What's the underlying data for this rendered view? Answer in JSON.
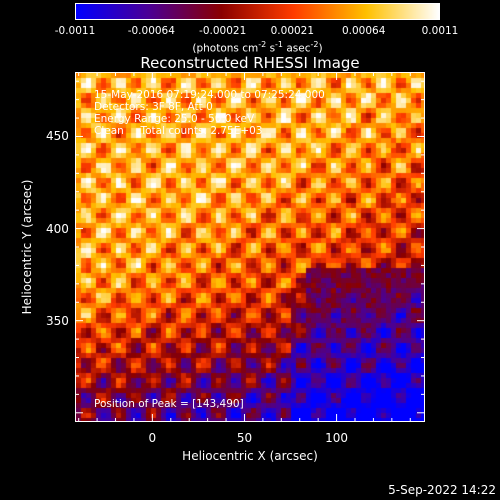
{
  "colorbar": {
    "ticks": [
      "-0.0011",
      "-0.00064",
      "-0.00021",
      "0.00021",
      "0.00064",
      "0.0011"
    ],
    "tick_values": [
      -0.0011,
      -0.00064,
      -0.00021,
      0.00021,
      0.00064,
      0.0011
    ],
    "range": [
      -0.0011,
      0.0011
    ],
    "unit_prefix": "(photons cm",
    "unit_sup1": "-2",
    "unit_mid1": " s",
    "unit_sup2": "-1",
    "unit_mid2": " asec",
    "unit_sup3": "-2",
    "unit_suffix": ")",
    "colors": [
      "#0000ff",
      "#4b0095",
      "#8a0000",
      "#ff3c00",
      "#ffc000",
      "#ffffff"
    ]
  },
  "chart_data": {
    "type": "heatmap",
    "title": "Reconstructed RHESSI Image",
    "xlabel": "Heliocentric X (arcsec)",
    "ylabel": "Heliocentric Y (arcsec)",
    "xlim": [
      -42,
      148
    ],
    "ylim": [
      295,
      485
    ],
    "xticks": [
      0,
      50,
      100
    ],
    "yticks": [
      350,
      400,
      450
    ],
    "peak": [
      143,
      490
    ]
  },
  "info": {
    "line1": "15-May-2016 07:19:24.000 to 07:25:24.000",
    "line2": "Detectors: 3F 8F, Att 0",
    "line3": "Energy Range: 25.0 - 50.0 keV",
    "line4": "Clean     Total counts: 2.75E+03",
    "peak_text": "Position of Peak = [143,490]"
  },
  "timestamp": "5-Sep-2022 14:22"
}
